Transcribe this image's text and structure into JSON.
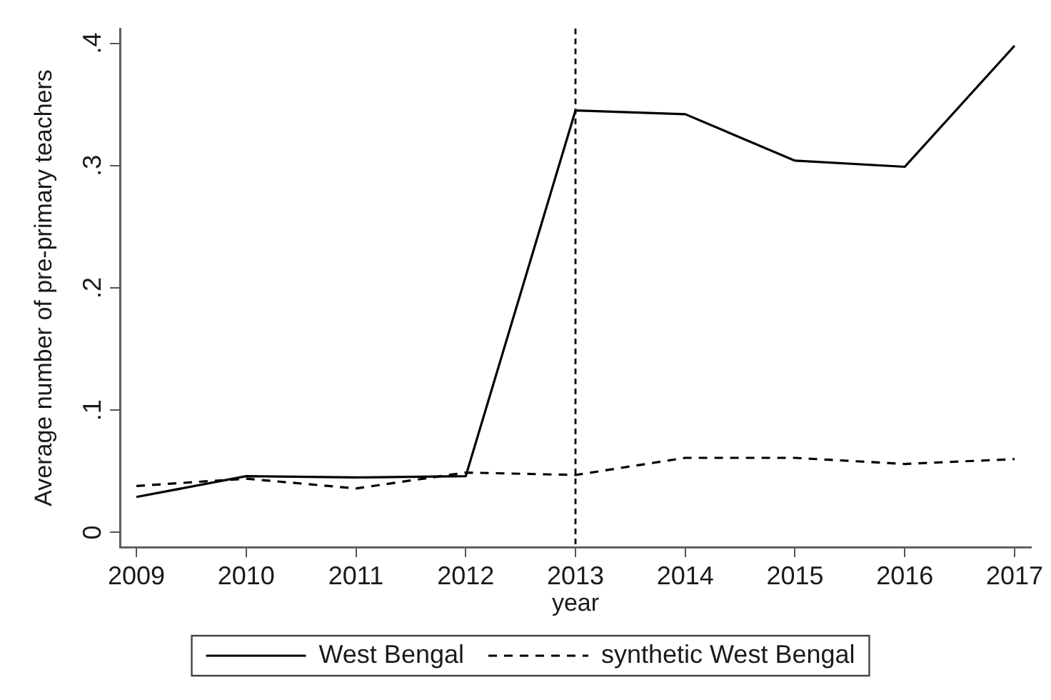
{
  "chart_data": {
    "type": "line",
    "xlabel": "year",
    "ylabel": "Average number of pre-primary teachers",
    "x": [
      2009,
      2010,
      2011,
      2012,
      2013,
      2014,
      2015,
      2016,
      2017
    ],
    "series": [
      {
        "name": "West Bengal",
        "color": "#000000",
        "line_style": "solid",
        "values": [
          0.029,
          0.046,
          0.045,
          0.046,
          0.345,
          0.342,
          0.304,
          0.299,
          0.398
        ]
      },
      {
        "name": "synthetic West Bengal",
        "color": "#000000",
        "line_style": "dashed",
        "values": [
          0.038,
          0.044,
          0.036,
          0.049,
          0.047,
          0.061,
          0.061,
          0.056,
          0.06
        ]
      }
    ],
    "xlim": [
      2008.85,
      2017.15
    ],
    "xticks": [
      2009,
      2010,
      2011,
      2012,
      2013,
      2014,
      2015,
      2016,
      2017
    ],
    "ylim": [
      -0.012,
      0.412
    ],
    "yticks": [
      0,
      {
        "value": 0.1,
        "label": ".1"
      },
      {
        "value": 0.2,
        "label": ".2"
      },
      {
        "value": 0.3,
        "label": ".3"
      },
      {
        "value": 0.4,
        "label": ".4"
      }
    ],
    "ref_lines": [
      {
        "axis": "x",
        "value": 2013,
        "color": "#000000",
        "line_style": "dashed"
      }
    ],
    "legend": "bottom",
    "grid": false,
    "marker": "none"
  }
}
